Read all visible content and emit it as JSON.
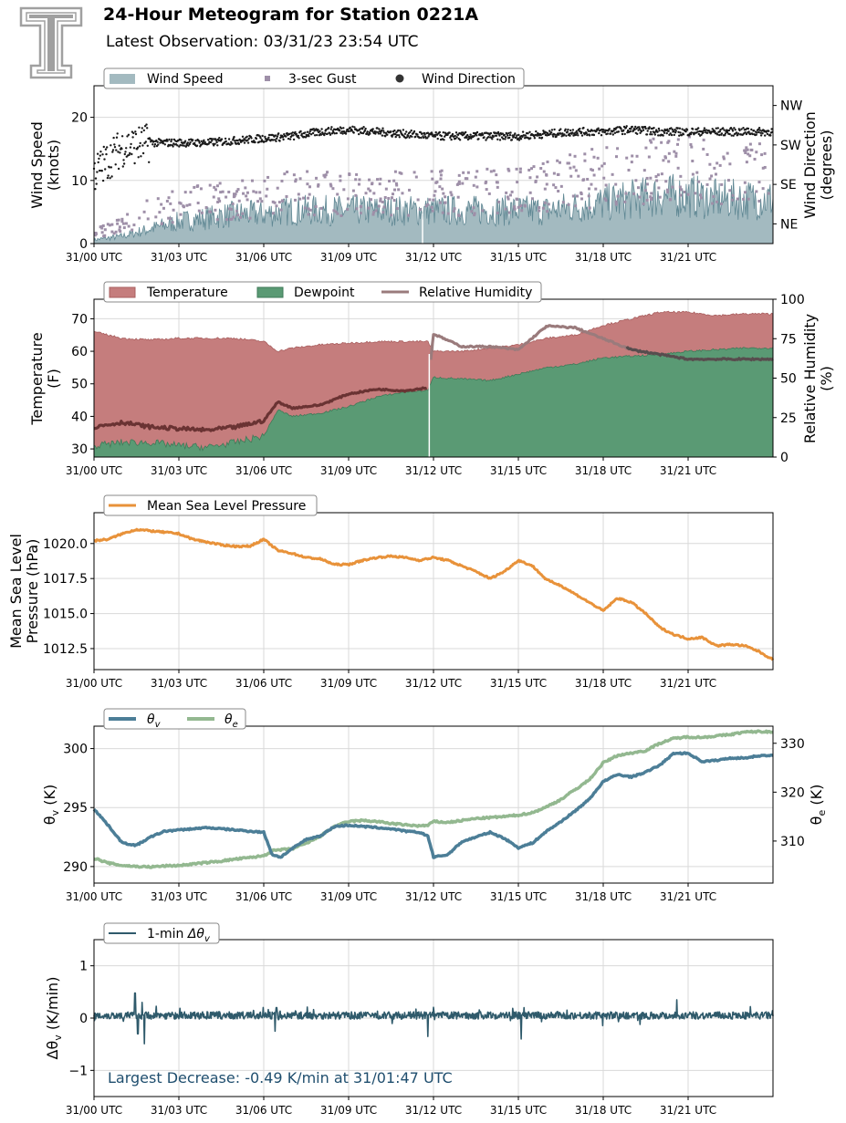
{
  "header": {
    "title": "24-Hour Meteogram for Station 0221A",
    "subtitle": "Latest Observation: 03/31/23 23:54 UTC"
  },
  "colors": {
    "wind_speed": "#a3bac0",
    "wind_speed_line": "#5f8793",
    "gust": "#9e8fa8",
    "direction": "#1a1a1a",
    "temperature": "#c57d7d",
    "dewpoint": "#5a9a74",
    "rh": "#9a7b7c",
    "rh_overlap": "#6a3333",
    "pressure": "#e8923a",
    "theta_v": "#4c7e97",
    "theta_e": "#93b890",
    "delta": "#2f5a6b",
    "annotation": "#1f4e6e",
    "logo": "#a0a0a0"
  },
  "chart_data": [
    {
      "type": "area",
      "x_tick_labels": [
        "31/00 UTC",
        "31/03 UTC",
        "31/06 UTC",
        "31/09 UTC",
        "31/12 UTC",
        "31/15 UTC",
        "31/18 UTC",
        "31/21 UTC"
      ],
      "xlim_hours": [
        0,
        24
      ],
      "ylabel": "Wind Speed\n(knots)",
      "ylim": [
        0,
        25
      ],
      "yticks": [
        0,
        10,
        20
      ],
      "y2label": "Wind Direction\n(degrees)",
      "y2ticks": [
        "NE",
        "SE",
        "SW",
        "NW"
      ],
      "y2lim": [
        0,
        360
      ],
      "legend": [
        "Wind Speed",
        "3-sec Gust",
        "Wind Direction"
      ],
      "series": [
        {
          "name": "Wind Speed",
          "x": [
            0,
            1,
            2,
            3,
            4,
            5,
            6,
            7,
            8,
            9,
            10,
            11,
            12,
            13,
            14,
            15,
            16,
            17,
            18,
            19,
            20,
            21,
            22,
            23,
            24
          ],
          "values": [
            0.5,
            1,
            2,
            3,
            3.5,
            4,
            4,
            4.5,
            4.5,
            4.5,
            4.5,
            4.5,
            4.5,
            4.5,
            4.5,
            4.5,
            4.5,
            5,
            5.5,
            6,
            6.5,
            6.5,
            6,
            6,
            6
          ]
        },
        {
          "name": "3-sec Gust",
          "x": [
            0,
            1,
            2,
            3,
            4,
            5,
            6,
            7,
            8,
            9,
            10,
            11,
            12,
            13,
            14,
            15,
            16,
            17,
            18,
            19,
            20,
            21,
            22,
            23,
            24
          ],
          "values": [
            1.5,
            3,
            5,
            6,
            6.5,
            7,
            7.5,
            8,
            8,
            8,
            8,
            8,
            8,
            8,
            8.5,
            9,
            9,
            10,
            10.5,
            11,
            12,
            12,
            11,
            11,
            11
          ]
        },
        {
          "name": "Wind Direction",
          "x": [
            0,
            1,
            2,
            3,
            4,
            5,
            6,
            7,
            8,
            9,
            10,
            11,
            12,
            13,
            14,
            15,
            16,
            17,
            18,
            19,
            20,
            21,
            22,
            23,
            24
          ],
          "values": [
            160,
            220,
            230,
            230,
            230,
            235,
            240,
            245,
            255,
            260,
            255,
            250,
            245,
            245,
            245,
            245,
            250,
            255,
            255,
            260,
            255,
            255,
            255,
            255,
            255
          ]
        }
      ]
    },
    {
      "type": "area",
      "x_tick_labels": [
        "31/00 UTC",
        "31/03 UTC",
        "31/06 UTC",
        "31/09 UTC",
        "31/12 UTC",
        "31/15 UTC",
        "31/18 UTC",
        "31/21 UTC"
      ],
      "xlim_hours": [
        0,
        24
      ],
      "ylabel": "Temperature\n(F)",
      "ylim": [
        27.5,
        76
      ],
      "yticks": [
        30,
        40,
        50,
        60,
        70
      ],
      "y2label": "Relative Humidity\n(%)",
      "y2ticks": [
        0,
        25,
        50,
        75,
        100
      ],
      "y2lim": [
        0,
        100
      ],
      "legend": [
        "Temperature",
        "Dewpoint",
        "Relative Humidity"
      ],
      "series": [
        {
          "name": "Temperature",
          "x": [
            0,
            1,
            2,
            3,
            4,
            5,
            6,
            6.5,
            7,
            8,
            9,
            10,
            11,
            11.8,
            12,
            13,
            14,
            15,
            16,
            17,
            18,
            19,
            20,
            21,
            22,
            23,
            24
          ],
          "values": [
            66,
            64,
            63.5,
            64,
            64,
            64,
            63,
            60,
            61,
            62,
            62.5,
            63,
            63,
            63,
            60,
            60,
            61,
            62,
            64,
            65,
            68,
            70,
            72,
            72,
            71,
            71.5,
            71.5
          ]
        },
        {
          "name": "Dewpoint",
          "x": [
            0,
            1,
            2,
            3,
            4,
            5,
            6,
            6.5,
            7,
            8,
            9,
            10,
            11,
            11.8,
            12,
            13,
            14,
            15,
            16,
            17,
            18,
            19,
            20,
            21,
            22,
            23,
            24
          ],
          "values": [
            31,
            32,
            32,
            31,
            30.5,
            32,
            34,
            42,
            40,
            41,
            43,
            46,
            47.5,
            48,
            52,
            51.5,
            51,
            53,
            55,
            56,
            58,
            58.5,
            59,
            60,
            60.5,
            61,
            61
          ]
        },
        {
          "name": "Relative Humidity",
          "x": [
            0,
            1,
            2,
            3,
            4,
            5,
            6,
            6.5,
            7,
            8,
            9,
            10,
            11,
            11.8,
            12,
            13,
            14,
            15,
            16,
            17,
            18,
            19,
            20,
            21,
            22,
            23,
            24
          ],
          "values": [
            19,
            22,
            19,
            18,
            17,
            19,
            23,
            35,
            31,
            33,
            40,
            43,
            42,
            44,
            78,
            70,
            70,
            68,
            83,
            82,
            75,
            68,
            65,
            62,
            62,
            62,
            62
          ]
        }
      ]
    },
    {
      "type": "line",
      "x_tick_labels": [
        "31/00 UTC",
        "31/03 UTC",
        "31/06 UTC",
        "31/09 UTC",
        "31/12 UTC",
        "31/15 UTC",
        "31/18 UTC",
        "31/21 UTC"
      ],
      "xlim_hours": [
        0,
        24
      ],
      "ylabel": "Mean Sea Level\nPressure (hPa)",
      "ylim": [
        1011,
        1022.2
      ],
      "yticks": [
        1012.5,
        1015.0,
        1017.5,
        1020.0
      ],
      "legend": [
        "Mean Sea Level Pressure"
      ],
      "series": [
        {
          "name": "Mean Sea Level Pressure",
          "x": [
            0,
            0.5,
            1,
            1.5,
            2,
            2.5,
            3,
            3.5,
            4,
            4.5,
            5,
            5.5,
            6,
            6.5,
            7,
            7.5,
            8,
            8.5,
            9,
            9.5,
            10,
            10.5,
            11,
            11.5,
            12,
            12.5,
            13,
            13.5,
            14,
            14.5,
            15,
            15.5,
            16,
            16.5,
            17,
            17.5,
            18,
            18.5,
            19,
            19.5,
            20,
            20.5,
            21,
            21.5,
            22,
            22.5,
            23,
            23.5,
            24
          ],
          "values": [
            1020.2,
            1020.3,
            1020.7,
            1021.0,
            1020.9,
            1020.8,
            1020.7,
            1020.3,
            1020.1,
            1019.9,
            1019.8,
            1019.8,
            1020.3,
            1019.5,
            1019.3,
            1019.0,
            1018.9,
            1018.5,
            1018.5,
            1018.8,
            1019.0,
            1019.1,
            1019.0,
            1018.8,
            1019.0,
            1018.8,
            1018.4,
            1018.0,
            1017.5,
            1018.0,
            1018.8,
            1018.4,
            1017.4,
            1017.0,
            1016.4,
            1015.8,
            1015.2,
            1016.1,
            1015.8,
            1015.0,
            1014.0,
            1013.5,
            1013.2,
            1013.3,
            1012.7,
            1012.8,
            1012.7,
            1012.3,
            1011.7
          ]
        }
      ]
    },
    {
      "type": "line",
      "x_tick_labels": [
        "31/00 UTC",
        "31/03 UTC",
        "31/06 UTC",
        "31/09 UTC",
        "31/12 UTC",
        "31/15 UTC",
        "31/18 UTC",
        "31/21 UTC"
      ],
      "xlim_hours": [
        0,
        24
      ],
      "ylabel": "θv (K)",
      "ylim": [
        288.6,
        301.9
      ],
      "yticks": [
        290,
        295,
        300
      ],
      "y2label": "θe (K)",
      "y2ticks": [
        310,
        320,
        330
      ],
      "y2lim": [
        301.4,
        333.5
      ],
      "legend": [
        "θv",
        "θe"
      ],
      "series": [
        {
          "name": "θv",
          "x": [
            0,
            0.5,
            1,
            1.5,
            2,
            2.5,
            3,
            3.5,
            4,
            4.5,
            5,
            5.5,
            6,
            6.3,
            6.6,
            7,
            7.5,
            8,
            8.5,
            9,
            9.5,
            10,
            10.5,
            11,
            11.5,
            11.8,
            12,
            12.5,
            13,
            13.5,
            14,
            14.5,
            15,
            15.5,
            16,
            16.5,
            17,
            17.5,
            18,
            18.5,
            19,
            19.5,
            20,
            20.5,
            21,
            21.5,
            22,
            22.5,
            23,
            23.5,
            24
          ],
          "values": [
            294.9,
            293.5,
            292.0,
            291.8,
            292.5,
            293.0,
            293.1,
            293.2,
            293.3,
            293.2,
            293.1,
            293.0,
            292.9,
            291.0,
            290.8,
            291.5,
            292.3,
            292.6,
            293.4,
            293.5,
            293.4,
            293.3,
            293.2,
            293.0,
            292.9,
            292.6,
            290.8,
            291.0,
            292.1,
            292.5,
            292.9,
            292.4,
            291.6,
            292.0,
            293.0,
            293.8,
            294.7,
            295.7,
            297.2,
            297.8,
            297.6,
            298.0,
            298.6,
            299.6,
            299.6,
            298.9,
            299.0,
            299.2,
            299.2,
            299.4,
            299.4
          ]
        },
        {
          "name": "θe",
          "x": [
            0,
            0.5,
            1,
            1.5,
            2,
            2.5,
            3,
            3.5,
            4,
            4.5,
            5,
            5.5,
            6,
            6.3,
            6.6,
            7,
            7.5,
            8,
            8.5,
            9,
            9.5,
            10,
            10.5,
            11,
            11.5,
            11.8,
            12,
            12.5,
            13,
            13.5,
            14,
            14.5,
            15,
            15.5,
            16,
            16.5,
            17,
            17.5,
            18,
            18.5,
            19,
            19.5,
            20,
            20.5,
            21,
            21.5,
            22,
            22.5,
            23,
            23.5,
            24
          ],
          "values": [
            306.5,
            305.5,
            305.0,
            304.8,
            304.7,
            304.9,
            305.0,
            305.3,
            305.6,
            305.9,
            306.3,
            306.6,
            307.0,
            308.0,
            308.2,
            308.4,
            309.5,
            311.0,
            313.0,
            314.0,
            314.2,
            314.0,
            313.6,
            313.3,
            313.1,
            313.2,
            314.0,
            313.8,
            314.2,
            314.6,
            314.8,
            315.0,
            315.3,
            315.8,
            317.0,
            318.5,
            320.5,
            322.5,
            326.0,
            327.5,
            328.0,
            328.5,
            330.0,
            331.0,
            331.3,
            331.2,
            331.5,
            331.8,
            332.3,
            332.4,
            332.3
          ]
        }
      ]
    },
    {
      "type": "line",
      "x_tick_labels": [
        "31/00 UTC",
        "31/03 UTC",
        "31/06 UTC",
        "31/09 UTC",
        "31/12 UTC",
        "31/15 UTC",
        "31/18 UTC",
        "31/21 UTC"
      ],
      "xlim_hours": [
        0,
        24
      ],
      "ylabel": "Δθv (K/min)",
      "ylim": [
        -1.5,
        1.5
      ],
      "yticks": [
        -1,
        0,
        1
      ],
      "legend": [
        "1-min Δθv"
      ],
      "annotation": "Largest Decrease: -0.49 K/min at 31/01:47 UTC",
      "series": [
        {
          "name": "1-min Δθv",
          "x": [
            0,
            1.2,
            1.45,
            1.55,
            1.7,
            1.78,
            2,
            3,
            4,
            5,
            6,
            6.4,
            6.45,
            7,
            8,
            9,
            10,
            11,
            11.8,
            11.85,
            12,
            13,
            14,
            15,
            15.1,
            15.2,
            16,
            17,
            18,
            19,
            20,
            20.6,
            21,
            22,
            23,
            24
          ],
          "values": [
            0.05,
            0.1,
            0.48,
            -0.3,
            0.3,
            -0.49,
            0.1,
            0.08,
            0.05,
            0.05,
            0.05,
            -0.25,
            0.2,
            0.1,
            0.06,
            0.1,
            0.08,
            0.05,
            -0.35,
            0.15,
            0.1,
            0.1,
            0.05,
            0.1,
            -0.4,
            0.2,
            0.1,
            0.1,
            0.1,
            0.1,
            0.1,
            0.35,
            0.05,
            0.1,
            0.1,
            0.05
          ]
        }
      ]
    }
  ]
}
